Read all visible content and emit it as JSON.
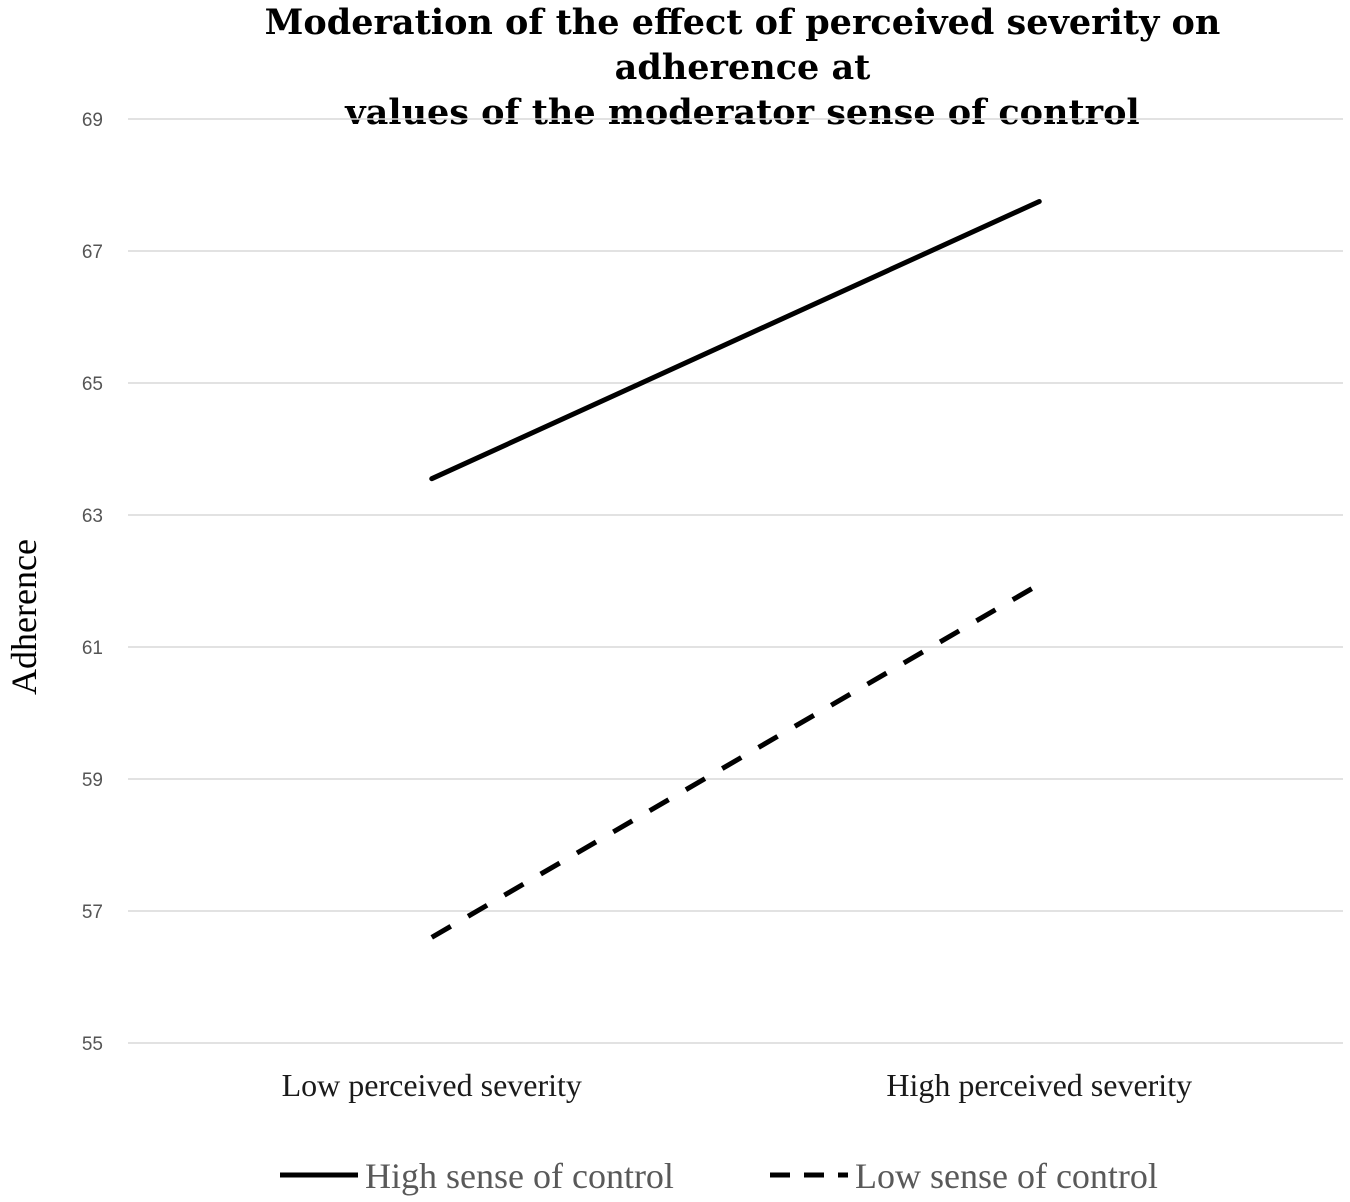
{
  "chart_data": {
    "type": "line",
    "title": "Moderation of the effect of perceived severity on adherence at values of the moderator sense of control",
    "title_lines": [
      "Moderation of the effect of perceived severity on adherence at",
      "values of the moderator sense of control"
    ],
    "xlabel": "",
    "ylabel": "Adherence",
    "categories": [
      "Low perceived severity",
      "High perceived severity"
    ],
    "ylim": [
      55,
      69
    ],
    "yticks": [
      55,
      57,
      59,
      61,
      63,
      65,
      67,
      69
    ],
    "grid": true,
    "legend_position": "bottom-center",
    "series": [
      {
        "name": "High sense of control",
        "style": "solid",
        "color": "#000000",
        "values": [
          63.55,
          67.75
        ]
      },
      {
        "name": "Low sense of control",
        "style": "dashed",
        "color": "#000000",
        "values": [
          56.6,
          61.95
        ]
      }
    ]
  }
}
